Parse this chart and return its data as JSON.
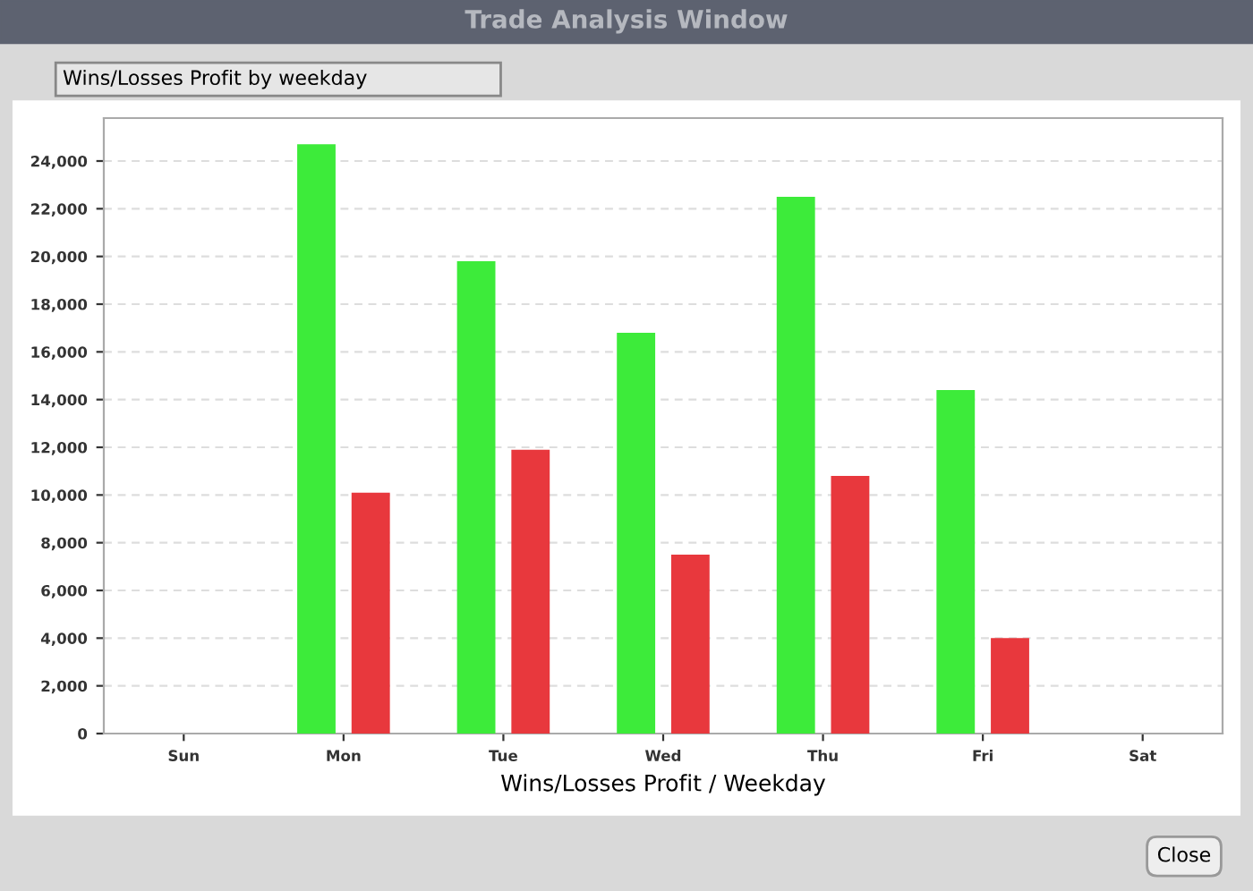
{
  "chart_data": {
    "type": "bar",
    "title": "Trade Analysis Window",
    "subtitle": "Wins/Losses Profit by weekday",
    "xlabel": "Wins/Losses Profit / Weekday",
    "annotations": [
      "Close"
    ],
    "categories": [
      "Sun",
      "Mon",
      "Tue",
      "Wed",
      "Thu",
      "Fri",
      "Sat"
    ],
    "series": [
      {
        "color": "#3deb3a",
        "values": [
          0,
          24700,
          19800,
          16800,
          22500,
          14400,
          0
        ]
      },
      {
        "color": "#e8383d",
        "values": [
          0,
          10100,
          11900,
          7500,
          10800,
          4000,
          0
        ]
      }
    ],
    "ylim": [
      0,
      25800
    ],
    "yticks": [
      0,
      {
        "value": 2000,
        "label": "2,000"
      },
      {
        "value": 4000,
        "label": "4,000"
      },
      {
        "value": 6000,
        "label": "6,000"
      },
      {
        "value": 8000,
        "label": "8,000"
      },
      {
        "value": 10000,
        "label": "10,000"
      },
      {
        "value": 12000,
        "label": "12,000"
      },
      {
        "value": 14000,
        "label": "14,000"
      },
      {
        "value": 16000,
        "label": "16,000"
      },
      {
        "value": 18000,
        "label": "18,000"
      },
      {
        "value": 20000,
        "label": "20,000"
      },
      {
        "value": 22000,
        "label": "22,000"
      },
      {
        "value": 24000,
        "label": "24,000"
      }
    ],
    "grid": "y",
    "legend": false
  }
}
